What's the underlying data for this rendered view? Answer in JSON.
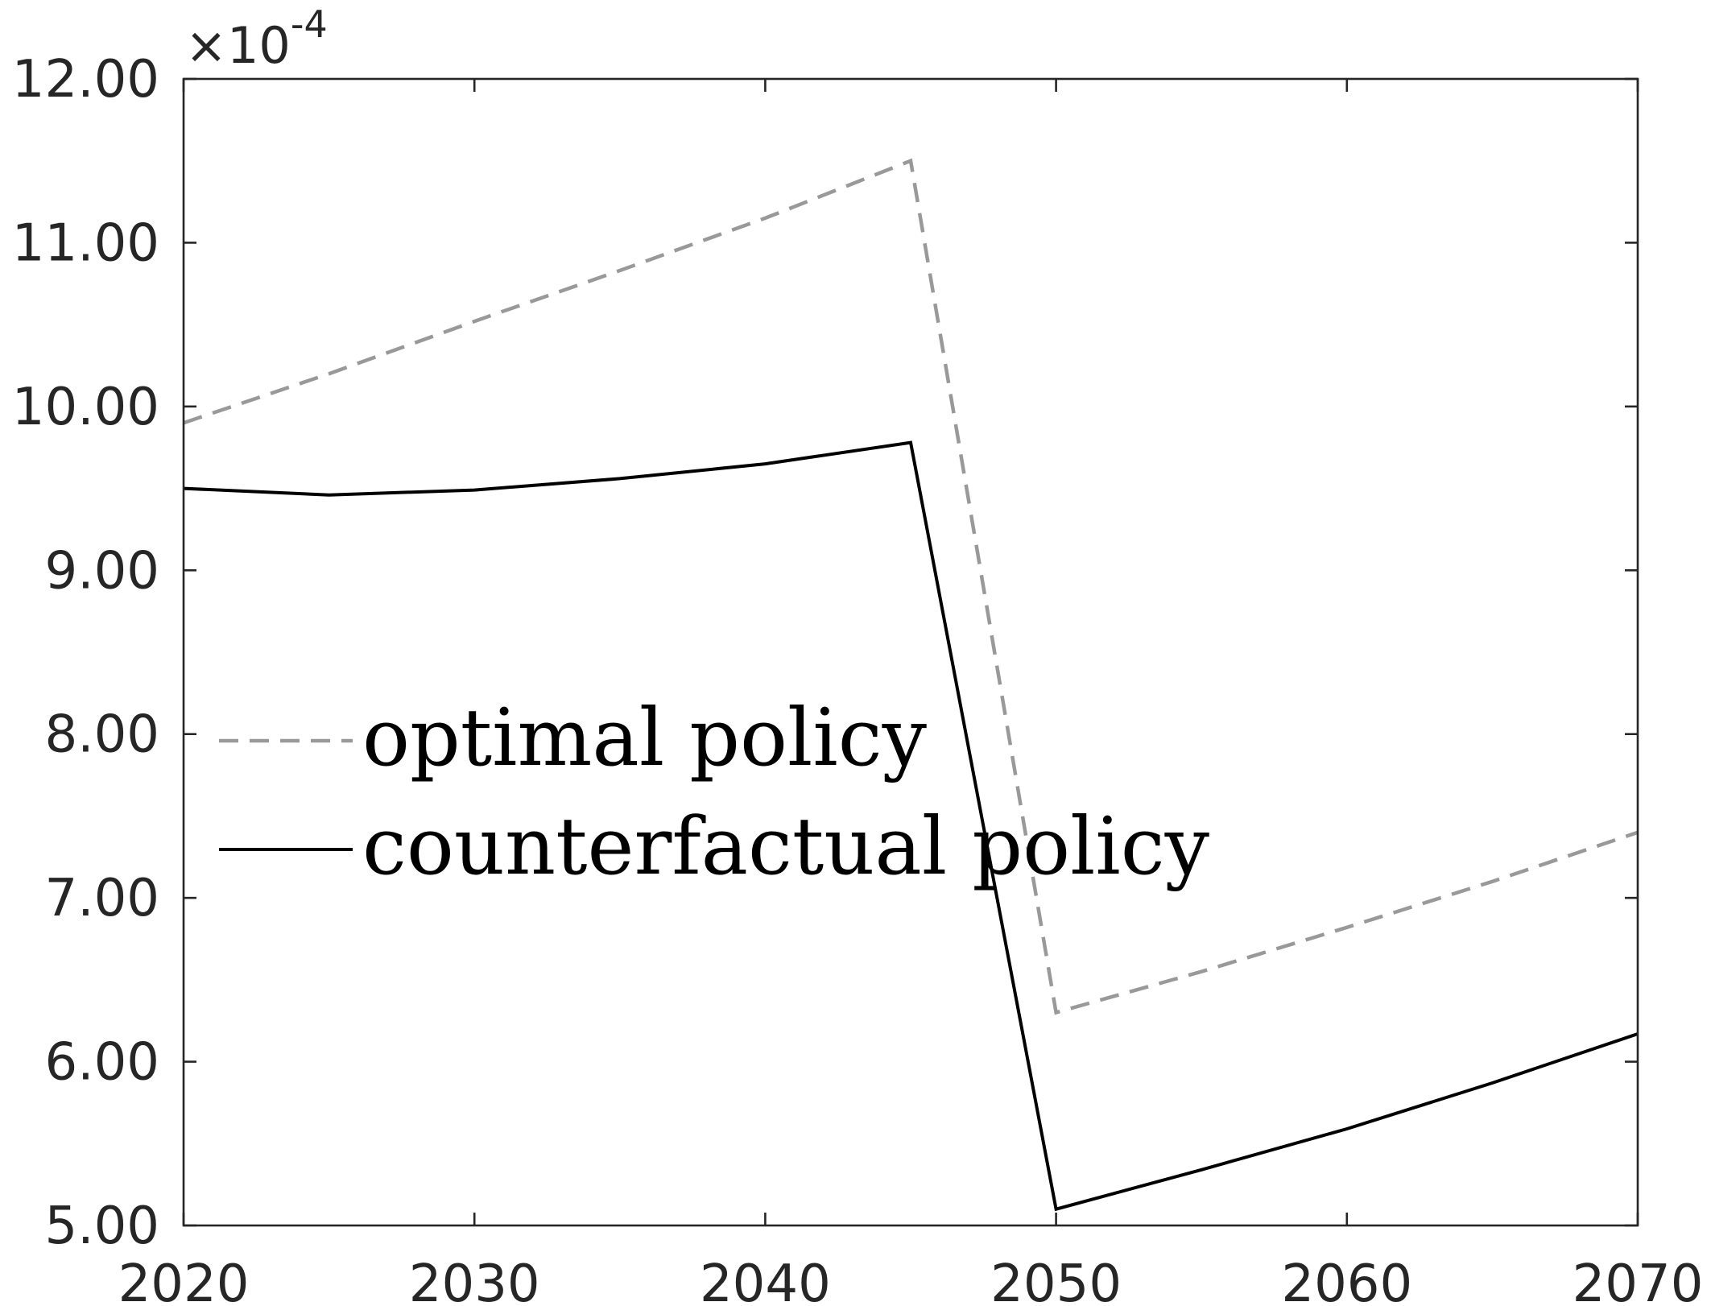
{
  "chart_data": {
    "type": "line",
    "title": "",
    "xlabel": "",
    "ylabel": "",
    "xlim": [
      2020,
      2070
    ],
    "ylim": [
      5.0,
      12.0
    ],
    "y_exponent_label": "×10",
    "y_exponent_power": "-4",
    "x_ticks": [
      2020,
      2030,
      2040,
      2050,
      2060,
      2070
    ],
    "x_tick_labels": [
      "2020",
      "2030",
      "2040",
      "2050",
      "2060",
      "2070"
    ],
    "y_ticks": [
      5,
      6,
      7,
      8,
      9,
      10,
      11,
      12
    ],
    "y_tick_labels": [
      "5.00",
      "6.00",
      "7.00",
      "8.00",
      "9.00",
      "10.00",
      "11.00",
      "12.00"
    ],
    "grid": false,
    "legend_position": "center-left",
    "series": [
      {
        "name": "optimal policy",
        "color": "#999999",
        "line_style": "dashed",
        "x": [
          2020,
          2025,
          2030,
          2035,
          2040,
          2045,
          2050,
          2055,
          2060,
          2065,
          2070
        ],
        "y": [
          9.9,
          10.2,
          10.52,
          10.83,
          11.15,
          11.5,
          6.3,
          6.55,
          6.82,
          7.1,
          7.4
        ]
      },
      {
        "name": "counterfactual policy",
        "color": "#000000",
        "line_style": "solid",
        "x": [
          2020,
          2025,
          2030,
          2035,
          2040,
          2045,
          2050,
          2055,
          2060,
          2065,
          2070
        ],
        "y": [
          9.5,
          9.46,
          9.49,
          9.56,
          9.65,
          9.78,
          5.1,
          5.34,
          5.59,
          5.87,
          6.17
        ]
      }
    ]
  }
}
